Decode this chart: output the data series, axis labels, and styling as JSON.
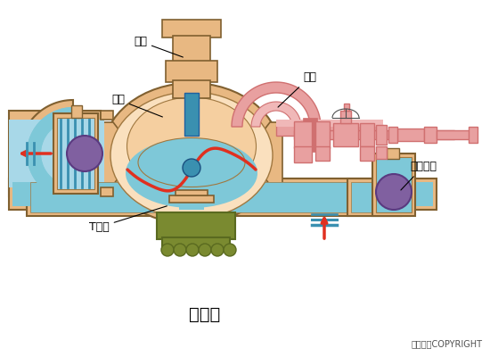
{
  "title": "隔膜泵",
  "copyright": "东方仿真COPYRIGHT",
  "bg_color": "#ffffff",
  "label_qigang": "气缸",
  "label_benti": "泵体",
  "label_gemo": "隔膜",
  "label_danxiangqiufa": "单向球阀",
  "label_tguang": "T型管",
  "colors": {
    "tan": "#E8B882",
    "tan_dark": "#C8965A",
    "tan_light": "#F5D5A0",
    "peach": "#F5CFA0",
    "peach_light": "#FAE0BE",
    "blue_water": "#7EC8D8",
    "blue_light": "#A8D8E8",
    "blue_deep": "#5AAFC0",
    "blue_dark": "#3A90B0",
    "red": "#E03020",
    "pink_tube": "#E8A0A0",
    "pink_dark": "#D07070",
    "pink_light": "#F0B8B8",
    "purple": "#8060A0",
    "purple_dark": "#5A3A80",
    "olive": "#7A8A30",
    "olive_dark": "#5A6A20",
    "stroke": "#A07840",
    "dark_stroke": "#806030",
    "gray_line": "#505050"
  }
}
